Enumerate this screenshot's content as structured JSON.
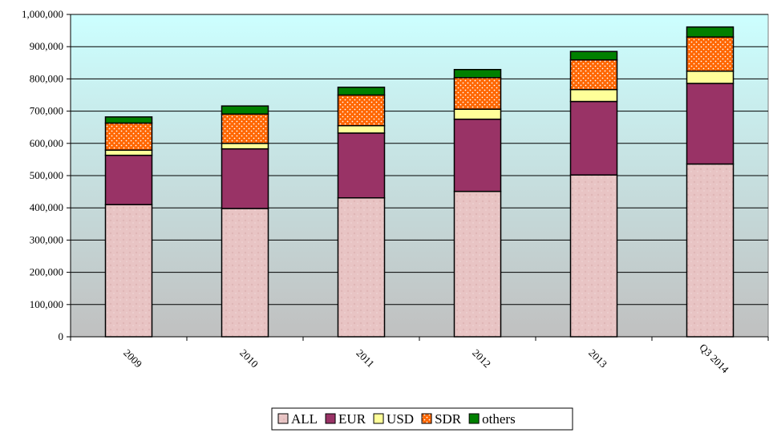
{
  "chart_data": {
    "type": "bar",
    "stacked": true,
    "title": "",
    "xlabel": "",
    "ylabel": "",
    "categories": [
      "2009",
      "2010",
      "2011",
      "2012",
      "2013",
      "Q3 2014"
    ],
    "series": [
      {
        "name": "ALL",
        "values": [
          410000,
          398000,
          431000,
          451000,
          502000,
          536000
        ]
      },
      {
        "name": "EUR",
        "values": [
          153000,
          185000,
          201000,
          224000,
          228000,
          250000
        ]
      },
      {
        "name": "USD",
        "values": [
          16000,
          17000,
          23000,
          31000,
          37000,
          38000
        ]
      },
      {
        "name": "SDR",
        "values": [
          84000,
          91000,
          95000,
          98000,
          92000,
          106000
        ]
      },
      {
        "name": "others",
        "values": [
          19000,
          25000,
          24000,
          25000,
          26000,
          31000
        ]
      }
    ],
    "ylim": [
      0,
      1000000
    ],
    "yticks": [
      "0",
      "100,000",
      "200,000",
      "300,000",
      "400,000",
      "500,000",
      "600,000",
      "700,000",
      "800,000",
      "900,000",
      "1,000,000"
    ],
    "ytick_values": [
      0,
      100000,
      200000,
      300000,
      400000,
      500000,
      600000,
      700000,
      800000,
      900000,
      1000000
    ],
    "grid": true,
    "legend": "bottom",
    "colors": {
      "ALL": "#e8c4c4",
      "EUR": "#993366",
      "USD": "#ffff99",
      "SDR": "#ff6600",
      "others": "#008000",
      "plot_top": "#ccffff",
      "plot_bottom": "#c0c0c0"
    }
  }
}
